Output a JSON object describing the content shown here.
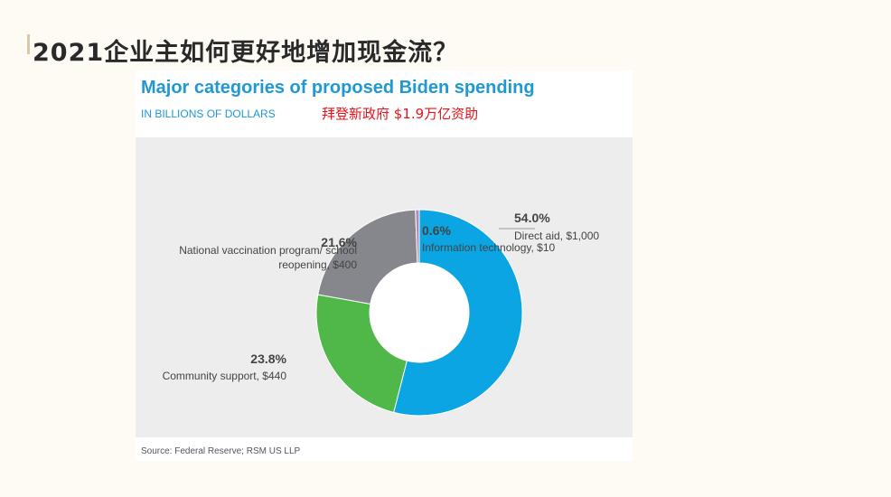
{
  "slide": {
    "title": "2021企业主如何更好地增加现金流？"
  },
  "chart_data": {
    "type": "pie",
    "donut": true,
    "title": "Major categories of proposed Biden spending",
    "subtitle": "IN BILLIONS OF DOLLARS",
    "annotation": "拜登新政府 $1.9万亿资助",
    "source": "Source: Federal Reserve; RSM US LLP",
    "unit": "billions of dollars",
    "slices": [
      {
        "label": "Direct aid, $1,000",
        "percent_label": "54.0%",
        "percent": 54.0,
        "value": 1000,
        "color": "#0aa5e2"
      },
      {
        "label": "Community support, $440",
        "percent_label": "23.8%",
        "percent": 23.8,
        "value": 440,
        "color": "#4fb848"
      },
      {
        "label_lines": [
          "National vaccination program/ school",
          "reopening, $400"
        ],
        "percent_label": "21.6%",
        "percent": 21.6,
        "value": 400,
        "color": "#85878c"
      },
      {
        "label": "Information technology, $10",
        "percent_label": "0.6%",
        "percent": 0.6,
        "value": 10,
        "color": "#a98cc0"
      }
    ]
  }
}
